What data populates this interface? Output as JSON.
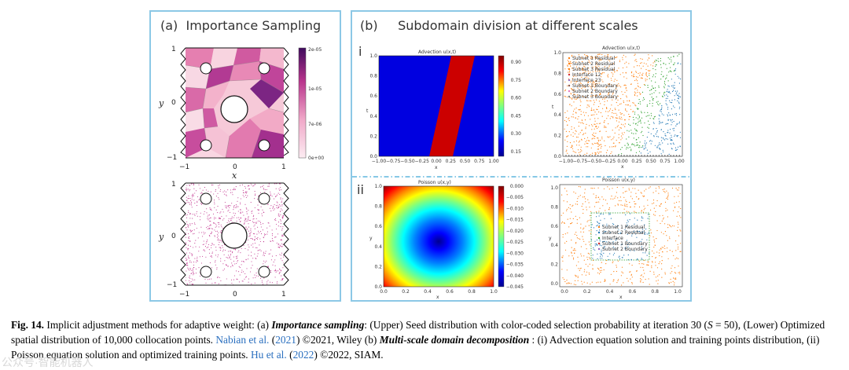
{
  "panel_a": {
    "label": "(a)",
    "title": "Importance Sampling",
    "colorbar_ticks": [
      "2e-05",
      "1e-05",
      "7e-06",
      "0e+00"
    ],
    "colorbar_colors": {
      "top": "#3f0a5c",
      "mid": "#b8348c",
      "low": "#f0a8c8",
      "bottom": "#fcecf2"
    },
    "x_ticks": [
      "−1",
      "0",
      "1"
    ],
    "y_ticks": [
      "1",
      "0",
      "−1"
    ],
    "xlabel": "x",
    "ylabel": "y"
  },
  "panel_b": {
    "label": "(b)",
    "title": "Subdomain division at different scales",
    "row_i": "i",
    "row_ii": "ii",
    "advection_solution": {
      "title": "Advection u(x,t)",
      "ylabel": "t",
      "xlabel": "x",
      "x_ticks": [
        "−1.00",
        "−0.75",
        "−0.50",
        "−0.25",
        "0.00",
        "0.25",
        "0.50",
        "0.75",
        "1.00"
      ],
      "y_ticks": [
        "1.0",
        "0.8",
        "0.6",
        "0.4",
        "0.2",
        "0.0"
      ],
      "cbar_ticks": [
        "0.90",
        "0.75",
        "0.60",
        "0.45",
        "0.30",
        "0.15"
      ]
    },
    "advection_points": {
      "title": "Advection u(x,t)",
      "ylabel": "t",
      "xlabel": "x",
      "x_ticks": [
        "−1.00",
        "−0.75",
        "−0.50",
        "−0.25",
        "0.00",
        "0.25",
        "0.50",
        "0.75",
        "1.00"
      ],
      "y_ticks": [
        "1.0",
        "0.8",
        "0.6",
        "0.4",
        "0.2",
        "0.0"
      ],
      "legend": [
        "Subnet 1 Residual",
        "Subnet 2 Residual",
        "Subnet 3 Residual",
        "Interface 12",
        "Interface 23",
        "Subnet 1 Boundary",
        "Subnet 2 Boundary",
        "Subnet 3 Boundary"
      ]
    },
    "poisson_solution": {
      "title": "Poisson u(x,y)",
      "ylabel": "y",
      "xlabel": "x",
      "x_ticks": [
        "0.0",
        "0.2",
        "0.4",
        "0.6",
        "0.8",
        "1.0"
      ],
      "y_ticks": [
        "1.0",
        "0.8",
        "0.6",
        "0.4",
        "0.2",
        "0.0"
      ],
      "cbar_ticks": [
        "0.000",
        "−0.005",
        "−0.010",
        "−0.015",
        "−0.020",
        "−0.025",
        "−0.030",
        "−0.035",
        "−0.040",
        "−0.045"
      ]
    },
    "poisson_points": {
      "title": "Poisson u(x,y)",
      "ylabel": "y",
      "xlabel": "x",
      "x_ticks": [
        "0.0",
        "0.2",
        "0.4",
        "0.6",
        "0.8",
        "1.0"
      ],
      "y_ticks": [
        "1.0",
        "0.8",
        "0.6",
        "0.4",
        "0.2",
        "0.0"
      ],
      "legend": [
        "Subnet 1 Residual",
        "Subnet 2 Residual",
        "Interface",
        "Subnet 1 Boundary",
        "Subnet 2 Boundary"
      ]
    }
  },
  "caption": {
    "fig": "Fig. 14.",
    "p1": " Implicit adjustment methods for adaptive weight: (a) ",
    "m1": "Importance sampling",
    "p2": ": (Upper) Seed distribution with color-coded selection probability at iteration 30 (",
    "svar": "S",
    "p3": " = 50), (Lower) Optimized spatial distribution of 10,000 collocation points. ",
    "ref1": "Nabian et al.",
    "p4": " (",
    "ref1y": "2021",
    "p5": ") ©2021, Wiley (b) ",
    "m2": "Multi-scale domain decomposition",
    "p6": " : (i) Advection equation solution and training points distribution, (ii) Poisson equation solution and optimized training points. ",
    "ref2": "Hu et al.",
    "p7": " (",
    "ref2y": "2022",
    "p8": ") ©2022, SIAM."
  },
  "watermark": "公众号·智能机器人"
}
